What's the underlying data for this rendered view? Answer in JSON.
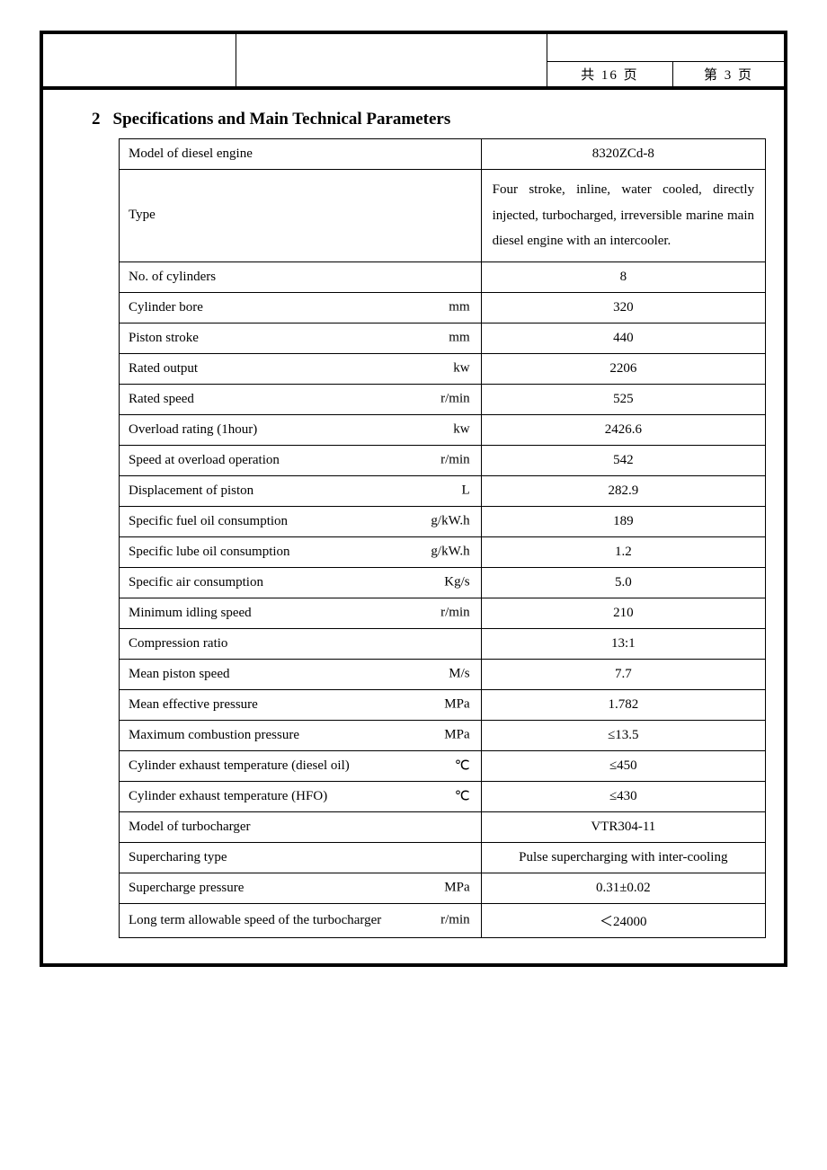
{
  "header": {
    "total_pages_label": "共  16  页",
    "page_number_label": "第  3  页"
  },
  "section": {
    "number": "2",
    "title": "Specifications and Main Technical Parameters"
  },
  "spec_table": {
    "rows": [
      {
        "label": "Model of diesel engine",
        "unit": "",
        "value": "8320ZCd-8",
        "value_align": "center"
      },
      {
        "label": "Type",
        "unit": "",
        "value": "Four stroke, inline, water cooled, directly injected, turbocharged, irreversible marine main diesel engine with an intercooler.",
        "value_align": "justify"
      },
      {
        "label": "No. of cylinders",
        "unit": "",
        "value": "8",
        "value_align": "center"
      },
      {
        "label": "Cylinder bore",
        "unit": "mm",
        "value": "320",
        "value_align": "center"
      },
      {
        "label": "Piston stroke",
        "unit": "mm",
        "value": "440",
        "value_align": "center"
      },
      {
        "label": "Rated output",
        "unit": "kw",
        "value": "2206",
        "value_align": "center"
      },
      {
        "label": "Rated speed",
        "unit": "r/min",
        "value": "525",
        "value_align": "center"
      },
      {
        "label": "Overload rating (1hour)",
        "unit": "kw",
        "value": "2426.6",
        "value_align": "center"
      },
      {
        "label": "Speed at overload operation",
        "unit": "r/min",
        "value": "542",
        "value_align": "center"
      },
      {
        "label": "Displacement of piston",
        "unit": "L",
        "value": "282.9",
        "value_align": "center"
      },
      {
        "label": "Specific fuel oil consumption",
        "unit": "g/kW.h",
        "value": "189",
        "value_align": "center"
      },
      {
        "label": "Specific lube oil consumption",
        "unit": "g/kW.h",
        "value": "1.2",
        "value_align": "center"
      },
      {
        "label": "Specific air consumption",
        "unit": "Kg/s",
        "value": "5.0",
        "value_align": "center"
      },
      {
        "label": "Minimum idling speed",
        "unit": "r/min",
        "value": "210",
        "value_align": "center"
      },
      {
        "label": "Compression ratio",
        "unit": "",
        "value": "13:1",
        "value_align": "center"
      },
      {
        "label": "Mean piston speed",
        "unit": "M/s",
        "value": "7.7",
        "value_align": "center"
      },
      {
        "label": "Mean effective pressure",
        "unit": "MPa",
        "value": "1.782",
        "value_align": "center"
      },
      {
        "label": "Maximum combustion pressure",
        "unit": "MPa",
        "value": "≤13.5",
        "value_align": "center"
      },
      {
        "label": "Cylinder exhaust temperature (diesel oil)",
        "unit": "℃",
        "value": "≤450",
        "value_align": "center"
      },
      {
        "label": "Cylinder exhaust temperature (HFO)",
        "unit": "℃",
        "value": "≤430",
        "value_align": "center"
      },
      {
        "label": "Model of turbocharger",
        "unit": "",
        "value": "VTR304-11",
        "value_align": "center"
      },
      {
        "label": "Supercharing type",
        "unit": "",
        "value": "Pulse supercharging with inter-cooling",
        "value_align": "center"
      },
      {
        "label": "Supercharge pressure",
        "unit": "MPa",
        "value": "0.31±0.02",
        "value_align": "center"
      },
      {
        "label": "Long term allowable speed of the turbocharger",
        "unit": "r/min",
        "value": "＜24000",
        "value_align": "center"
      }
    ]
  }
}
